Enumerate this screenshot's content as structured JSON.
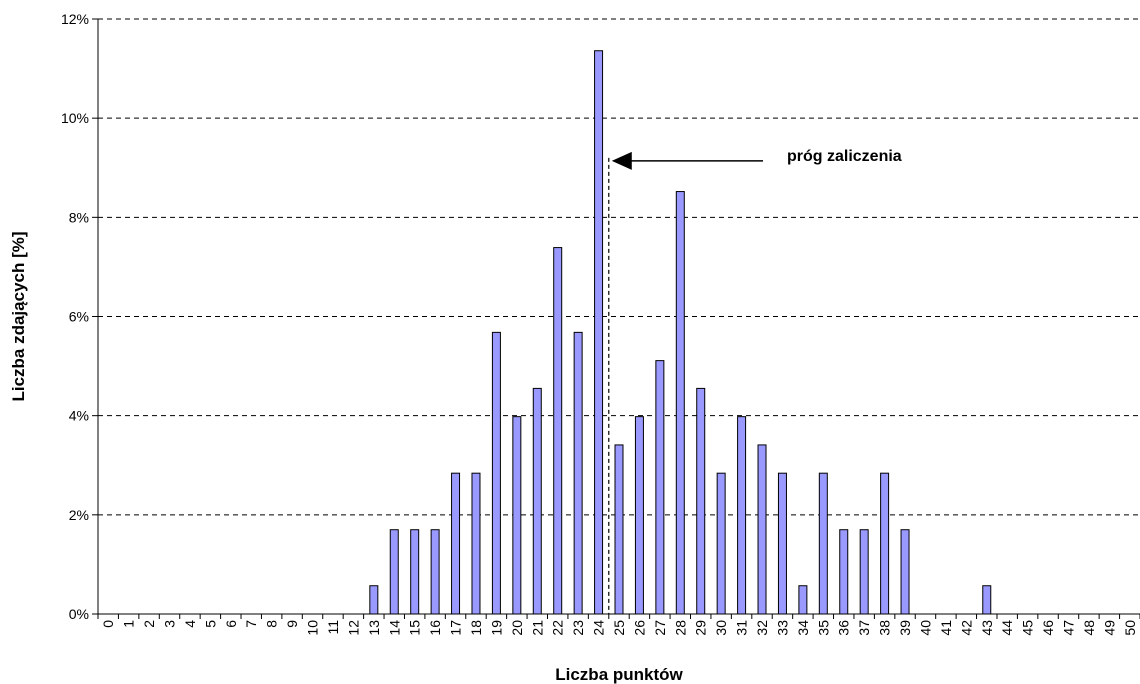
{
  "chart_data": {
    "type": "bar",
    "title": "",
    "xlabel": "Liczba punktów",
    "ylabel": "Liczba zdających [%]",
    "categories": [
      "0",
      "1",
      "2",
      "3",
      "4",
      "5",
      "6",
      "7",
      "8",
      "9",
      "10",
      "11",
      "12",
      "13",
      "14",
      "15",
      "16",
      "17",
      "18",
      "19",
      "20",
      "21",
      "22",
      "23",
      "24",
      "25",
      "26",
      "27",
      "28",
      "29",
      "30",
      "31",
      "32",
      "33",
      "34",
      "35",
      "36",
      "37",
      "38",
      "39",
      "40",
      "41",
      "42",
      "43",
      "44",
      "45",
      "46",
      "47",
      "48",
      "49",
      "50"
    ],
    "values": [
      0,
      0,
      0,
      0,
      0,
      0,
      0,
      0,
      0,
      0,
      0,
      0,
      0,
      0.57,
      1.7,
      1.7,
      1.7,
      2.84,
      2.84,
      5.68,
      3.98,
      4.55,
      7.39,
      5.68,
      11.36,
      3.41,
      3.98,
      5.11,
      8.52,
      4.55,
      2.84,
      3.98,
      3.41,
      2.84,
      0.57,
      2.84,
      1.7,
      1.7,
      2.84,
      1.7,
      0,
      0,
      0,
      0.57,
      0,
      0,
      0,
      0,
      0,
      0,
      0
    ],
    "y_tick_labels": [
      "0%",
      "2%",
      "4%",
      "6%",
      "8%",
      "10%",
      "12%"
    ],
    "y_tick_values": [
      0,
      2,
      4,
      6,
      8,
      10,
      12
    ],
    "ylim": [
      0,
      12
    ],
    "grid": "horizontal-dashed",
    "legend": "none",
    "bar_color": "#9999ff",
    "annotations": [
      {
        "text": "próg zaliczenia",
        "threshold_x": 24.5,
        "threshold_top": 9.2
      }
    ]
  }
}
